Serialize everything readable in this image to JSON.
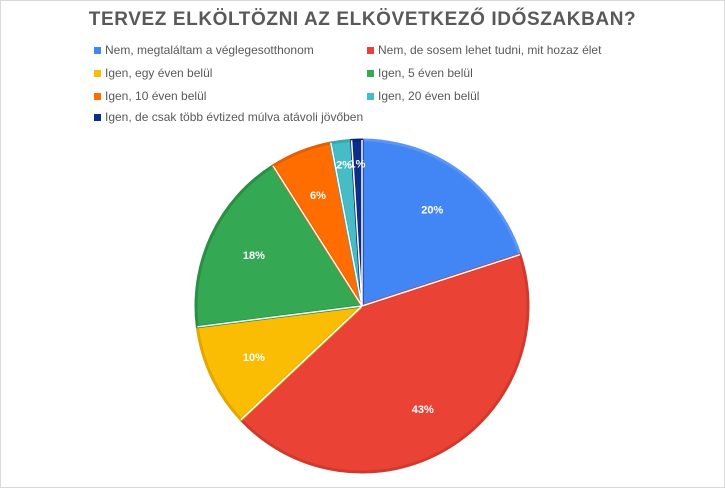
{
  "chart_data": {
    "type": "pie",
    "title": "TERVEZ ELKÖLTÖZNI AZ ELKÖVETKEZŐ IDŐSZAKBAN?",
    "legend_position": "top",
    "categories": [
      "Nem, megtaláltam a véglegesotthonom",
      "Nem, de sosem lehet tudni, mit hozaz élet",
      "Igen, egy éven belül",
      "Igen, 5 éven belül",
      "Igen, 10 éven belül",
      "Igen, 20 éven belül",
      "Igen, de csak több évtized múlva atávoli jövőben"
    ],
    "values": [
      20,
      43,
      10,
      18,
      6,
      2,
      1
    ],
    "labels": [
      "20%",
      "43%",
      "10%",
      "18%",
      "6%",
      "2%",
      "1%"
    ],
    "colors": [
      "#4285f4",
      "#ea4335",
      "#fbbc04",
      "#34a853",
      "#ff6d01",
      "#46bdc6",
      "#0b2e8a"
    ],
    "outline_colors": [
      "#5c96f5",
      "#d03a2e",
      "#e0a800",
      "#2a8f44",
      "#e55e00",
      "#3aa6ae",
      "#0a2577"
    ]
  }
}
